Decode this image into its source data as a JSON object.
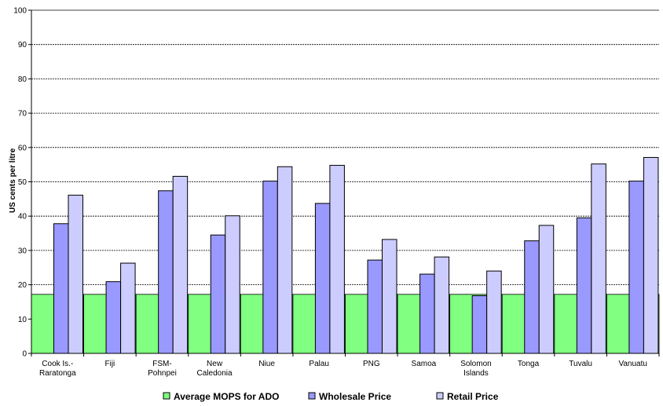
{
  "chart_data": {
    "type": "bar",
    "title": "",
    "xlabel": "",
    "ylabel": "US cents per litre",
    "ylim": [
      0,
      100
    ],
    "yticks": [
      0,
      10,
      20,
      30,
      40,
      50,
      60,
      70,
      80,
      90,
      100
    ],
    "grid": true,
    "legend_position": "bottom",
    "categories": [
      [
        "Cook Is.-",
        "Raratonga"
      ],
      [
        "Fiji"
      ],
      [
        "FSM-",
        "Pohnpei"
      ],
      [
        "New",
        "Caledonia"
      ],
      [
        "Niue"
      ],
      [
        "Palau"
      ],
      [
        "PNG"
      ],
      [
        "Samoa"
      ],
      [
        "Solomon",
        "Islands"
      ],
      [
        "Tonga"
      ],
      [
        "Tuvalu"
      ],
      [
        "Vanuatu"
      ]
    ],
    "series": [
      {
        "name": "Average MOPS for ADO",
        "type": "area",
        "color": "#80ff80",
        "values": [
          17.2,
          17.2,
          17.2,
          17.2,
          17.2,
          17.2,
          17.2,
          17.2,
          17.2,
          17.2,
          17.2,
          17.2
        ]
      },
      {
        "name": "Wholesale Price",
        "type": "bar",
        "color": "#9999ff",
        "values": [
          37.8,
          20.9,
          47.4,
          34.5,
          50.2,
          43.7,
          27.2,
          23.1,
          16.8,
          32.8,
          39.5,
          50.2
        ]
      },
      {
        "name": "Retail Price",
        "type": "bar",
        "color": "#ccccff",
        "values": [
          46.1,
          26.3,
          51.6,
          40.1,
          54.4,
          54.8,
          33.2,
          28.1,
          24.0,
          37.3,
          55.2,
          57.1
        ]
      }
    ]
  }
}
